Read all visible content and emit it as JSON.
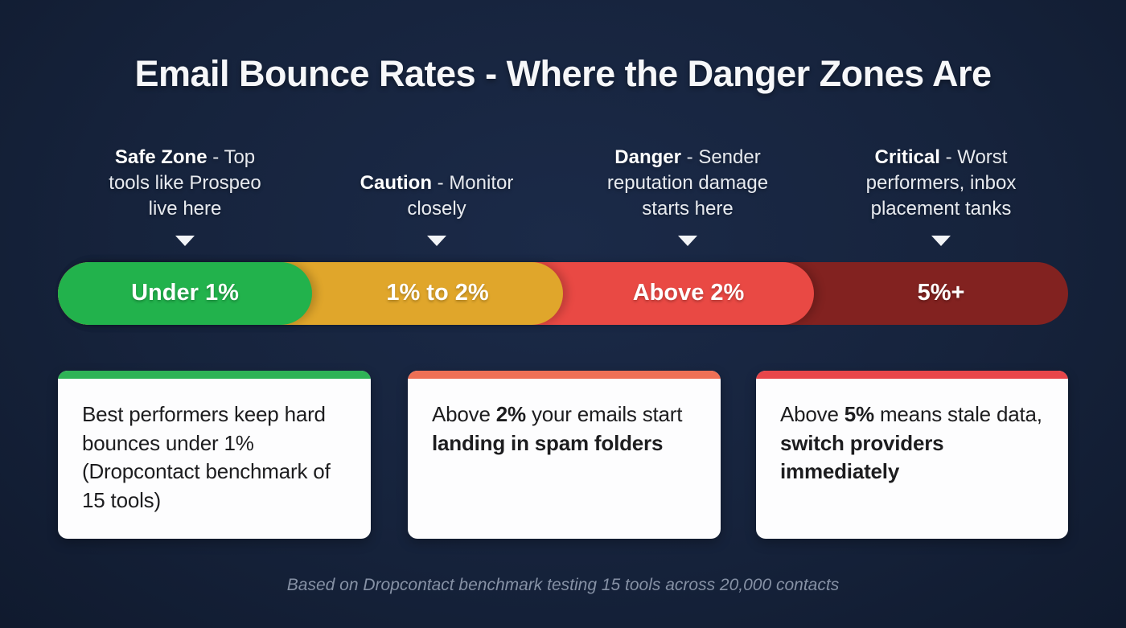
{
  "title": "Email Bounce Rates - Where the Danger Zones Are",
  "background_color": "#16233c",
  "icons": {
    "zone_pointer": "down-triangle-icon"
  },
  "zones": [
    {
      "name": "safe",
      "label_bold": "Safe Zone",
      "label_rest": " - Top tools like Prospeo live here",
      "range": "Under 1%",
      "color": "#22b24c"
    },
    {
      "name": "caution",
      "label_bold": "Caution",
      "label_rest": " - Monitor closely",
      "range": "1% to 2%",
      "color": "#e0a62b"
    },
    {
      "name": "danger",
      "label_bold": "Danger",
      "label_rest": " - Sender reputation damage starts here",
      "range": "Above 2%",
      "color": "#e94944"
    },
    {
      "name": "critical",
      "label_bold": "Critical",
      "label_rest": " - Worst performers, inbox placement tanks",
      "range": "5%+",
      "color": "#822220"
    }
  ],
  "cards": [
    {
      "accent": "#2eb356",
      "segments": [
        {
          "text": "Best performers keep hard bounces under 1% (Dropcontact benchmark of 15 tools)",
          "bold": false
        }
      ]
    },
    {
      "accent": "#ee7055",
      "segments": [
        {
          "text": "Above ",
          "bold": false
        },
        {
          "text": "2%",
          "bold": true
        },
        {
          "text": " your emails start ",
          "bold": false
        },
        {
          "text": "landing in spam folders",
          "bold": true
        }
      ]
    },
    {
      "accent": "#e8464a",
      "segments": [
        {
          "text": "Above ",
          "bold": false
        },
        {
          "text": "5%",
          "bold": true
        },
        {
          "text": " means stale data, ",
          "bold": false
        },
        {
          "text": "switch providers immediately",
          "bold": true
        }
      ]
    }
  ],
  "footer": "Based on Dropcontact benchmark testing 15 tools across 20,000 contacts"
}
